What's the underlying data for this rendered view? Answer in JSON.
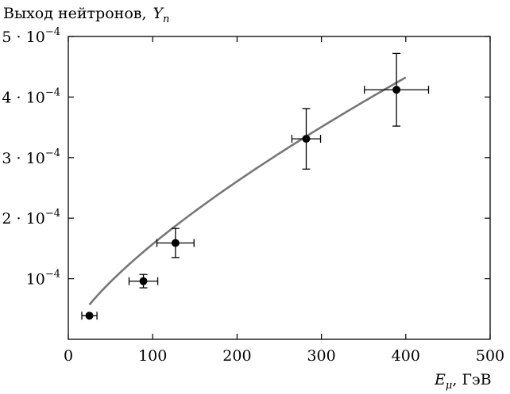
{
  "chart_data": {
    "type": "scatter",
    "ylabel": "Выход нейтронов,",
    "ylabel_symbol": "Y",
    "ylabel_symbol_sub": "n",
    "xlabel_symbol": "E",
    "xlabel_symbol_sub": "μ",
    "xlabel_unit": ", ГэВ",
    "xlim": [
      0,
      500
    ],
    "ylim": [
      0,
      0.0005
    ],
    "x_ticks": [
      {
        "value": 0,
        "label": "0"
      },
      {
        "value": 100,
        "label": "100"
      },
      {
        "value": 200,
        "label": "200"
      },
      {
        "value": 300,
        "label": "300"
      },
      {
        "value": 400,
        "label": "400"
      },
      {
        "value": 500,
        "label": "500"
      }
    ],
    "y_ticks": [
      {
        "value": 0.0001,
        "mantissa": "",
        "base": "10",
        "exp": "−4"
      },
      {
        "value": 0.0002,
        "mantissa": "2 · ",
        "base": "10",
        "exp": "−4"
      },
      {
        "value": 0.0003,
        "mantissa": "3 · ",
        "base": "10",
        "exp": "−4"
      },
      {
        "value": 0.0004,
        "mantissa": "4 · ",
        "base": "10",
        "exp": "−4"
      },
      {
        "value": 0.0005,
        "mantissa": "5 · ",
        "base": "10",
        "exp": "−4"
      }
    ],
    "points": [
      {
        "x": 25,
        "y": 3.9e-05,
        "xerr": 9,
        "yerr": 0
      },
      {
        "x": 89,
        "y": 9.6e-05,
        "xerr": 17,
        "yerr": 1.1e-05
      },
      {
        "x": 127,
        "y": 0.000159,
        "xerr": 22,
        "yerr": 2.4e-05
      },
      {
        "x": 282,
        "y": 0.000331,
        "xerr": 17,
        "yerr": 5e-05
      },
      {
        "x": 389,
        "y": 0.000412,
        "xerr": 38,
        "yerr": 6e-05
      }
    ],
    "fit": {
      "type": "power",
      "coef": 5.45e-06,
      "exponent": 0.73,
      "x_range": [
        25,
        400
      ],
      "color": "#777777"
    },
    "grid": false,
    "colors": {
      "points": "#000000",
      "axes": "#000000",
      "fit": "#777777"
    }
  }
}
